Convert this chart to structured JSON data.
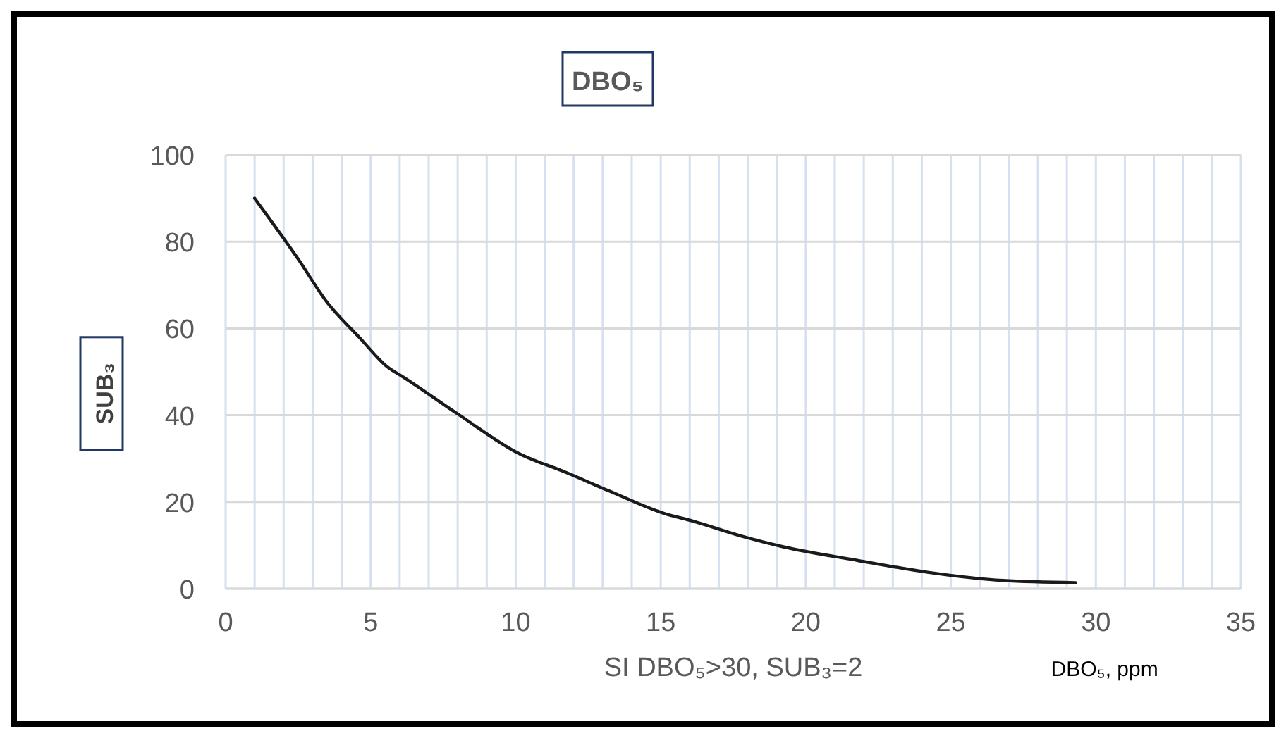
{
  "chart_data": {
    "type": "line",
    "title": "DBO₅",
    "ylabel": "SUB₃",
    "xlabel": "SI DBO₅>30, SUB₃=2",
    "annotations": [
      "DBO₅, ppm"
    ],
    "x": [
      1,
      2.5,
      3.5,
      4.6,
      5.6,
      6.1,
      8.0,
      10.1,
      11.7,
      13.2,
      15.1,
      16.1,
      17.9,
      19.2,
      21.8,
      24.2,
      26.8,
      29.3
    ],
    "series": [
      {
        "color": "#1a1a1a",
        "values": [
          90,
          76,
          66,
          58,
          51,
          48.9,
          40.3,
          31.2,
          26.9,
          22.6,
          17.4,
          15.6,
          11.9,
          9.7,
          6.5,
          3.8,
          1.9,
          1.4
        ]
      }
    ],
    "xlim": [
      0,
      35
    ],
    "ylim": [
      0,
      100
    ],
    "xticks": [
      0,
      {
        "value": 1,
        "label": null
      },
      {
        "value": 2,
        "label": null
      },
      {
        "value": 3,
        "label": null
      },
      {
        "value": 4,
        "label": null
      },
      5,
      {
        "value": 6,
        "label": null
      },
      {
        "value": 7,
        "label": null
      },
      {
        "value": 8,
        "label": null
      },
      {
        "value": 9,
        "label": null
      },
      10,
      {
        "value": 11,
        "label": null
      },
      {
        "value": 12,
        "label": null
      },
      {
        "value": 13,
        "label": null
      },
      {
        "value": 14,
        "label": null
      },
      15,
      {
        "value": 16,
        "label": null
      },
      {
        "value": 17,
        "label": null
      },
      {
        "value": 18,
        "label": null
      },
      {
        "value": 19,
        "label": null
      },
      20,
      {
        "value": 21,
        "label": null
      },
      {
        "value": 22,
        "label": null
      },
      {
        "value": 23,
        "label": null
      },
      {
        "value": 24,
        "label": null
      },
      25,
      {
        "value": 26,
        "label": null
      },
      {
        "value": 27,
        "label": null
      },
      {
        "value": 28,
        "label": null
      },
      {
        "value": 29,
        "label": null
      },
      30,
      {
        "value": 31,
        "label": null
      },
      {
        "value": 32,
        "label": null
      },
      {
        "value": 33,
        "label": null
      },
      {
        "value": 34,
        "label": null
      },
      35
    ],
    "yticks": [
      0,
      20,
      40,
      60,
      80,
      100
    ],
    "grid": true,
    "marker": "none",
    "line_style": "solid"
  }
}
